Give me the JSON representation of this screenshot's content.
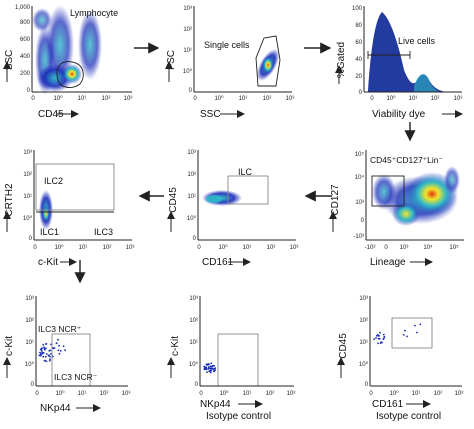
{
  "figure": {
    "panels": [
      {
        "id": "lymphocyte",
        "xlabel": "CD45",
        "ylabel": "SSC",
        "x_ticks": [
          "0",
          "10⁰",
          "10¹",
          "10²",
          "10³"
        ],
        "y_ticks": [
          "0",
          "200",
          "400",
          "600",
          "800",
          "1,000"
        ],
        "annotations": [
          "Lymphocyte"
        ]
      },
      {
        "id": "single-cells",
        "xlabel": "SSC",
        "ylabel": "FSC",
        "x_ticks": [
          "0",
          "10⁰",
          "10¹",
          "10²",
          "10³"
        ],
        "y_ticks": [
          "10³",
          "10²",
          "10¹",
          "10⁰",
          "0"
        ],
        "annotations": [
          "Single cells"
        ]
      },
      {
        "id": "live-cells",
        "xlabel": "Viability dye",
        "ylabel": "%Gated",
        "x_ticks": [
          "0",
          "10⁰",
          "10¹",
          "10²",
          "10³"
        ],
        "y_ticks": [
          "100",
          "80",
          "60",
          "40",
          "20",
          "0"
        ],
        "annotations": [
          "Live cells"
        ]
      },
      {
        "id": "ilc2",
        "xlabel": "c-Kit",
        "ylabel": "CRTH2",
        "x_ticks": [
          "0",
          "10⁰",
          "10¹",
          "10²",
          "10³"
        ],
        "y_ticks": [
          "10³",
          "10²",
          "10¹",
          "10⁰",
          "0"
        ],
        "annotations": [
          "ILC2",
          "ILC1",
          "ILC3"
        ]
      },
      {
        "id": "ilc",
        "xlabel": "CD161",
        "ylabel": "CD45",
        "x_ticks": [
          "0",
          "10⁰",
          "10¹",
          "10²",
          "10³"
        ],
        "y_ticks": [
          "10³",
          "10²",
          "10¹",
          "10⁰",
          "0"
        ],
        "annotations": [
          "ILC"
        ]
      },
      {
        "id": "lineage",
        "xlabel": "Lineage",
        "ylabel": "CD127",
        "x_ticks": [
          "-10³",
          "0",
          "10³",
          "10⁴",
          "10⁵"
        ],
        "y_ticks": [
          "10⁵",
          "10⁴",
          "10³",
          "0",
          "-10³"
        ],
        "annotations": [
          "CD45⁺CD127⁺Lin⁻"
        ]
      },
      {
        "id": "nkp44",
        "xlabel": "NKp44",
        "ylabel": "c-Kit",
        "x_ticks": [
          "0",
          "10⁰",
          "10¹",
          "10²",
          "10³"
        ],
        "y_ticks": [
          "10³",
          "10²",
          "10¹",
          "10⁰",
          "0"
        ],
        "annotations": [
          "ILC3 NCR⁺",
          "ILC3 NCR⁻"
        ]
      },
      {
        "id": "isotype-1",
        "xlabel": "NKp44",
        "ylabel": "c-Kit",
        "x_ticks": [
          "0",
          "10⁰",
          "10¹",
          "10²",
          "10³"
        ],
        "y_ticks": [
          "10³",
          "10²",
          "10¹",
          "10⁰",
          "0"
        ],
        "annotations": [],
        "caption": "Isotype control"
      },
      {
        "id": "isotype-2",
        "xlabel": "CD161",
        "ylabel": "CD45",
        "x_ticks": [
          "0",
          "10⁰",
          "10¹",
          "10²",
          "10³"
        ],
        "y_ticks": [
          "10³",
          "10²",
          "10¹",
          "10⁰",
          "0"
        ],
        "annotations": [],
        "caption": "Isotype control"
      }
    ]
  },
  "colors": {
    "axis": "#222222",
    "gate": "#8a8a8a",
    "density_low": "#1a2cb8",
    "density_mid": "#2fb8c8",
    "density_high": "#f2e62a",
    "density_peak": "#e8361a",
    "histogram": "#233a9e"
  }
}
